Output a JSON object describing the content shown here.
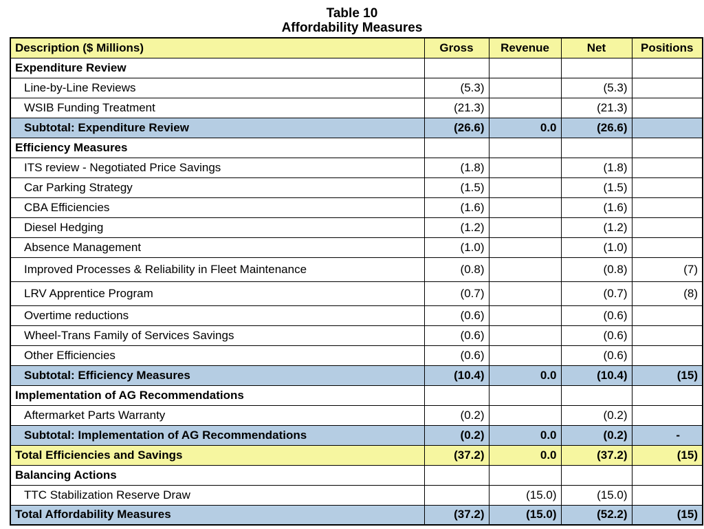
{
  "title": {
    "line1": "Table 10",
    "line2": "Affordability Measures"
  },
  "colors": {
    "yellow": "#f6f6a0",
    "blue": "#b5cde3"
  },
  "table": {
    "columns": [
      "Description ($ Millions)",
      "Gross",
      "Revenue",
      "Net",
      "Positions"
    ],
    "rows": [
      {
        "type": "section",
        "label": "Expenditure Review",
        "gross": "",
        "revenue": "",
        "net": "",
        "positions": ""
      },
      {
        "type": "item",
        "label": "Line-by-Line Reviews",
        "gross": "(5.3)",
        "revenue": "",
        "net": "(5.3)",
        "positions": ""
      },
      {
        "type": "item",
        "label": "WSIB Funding Treatment",
        "gross": "(21.3)",
        "revenue": "",
        "net": "(21.3)",
        "positions": ""
      },
      {
        "type": "subtotal",
        "label": "Subtotal: Expenditure Review",
        "gross": "(26.6)",
        "revenue": "0.0",
        "net": "(26.6)",
        "positions": ""
      },
      {
        "type": "section",
        "label": "Efficiency Measures",
        "gross": "",
        "revenue": "",
        "net": "",
        "positions": ""
      },
      {
        "type": "item",
        "label": "ITS review - Negotiated Price Savings",
        "gross": "(1.8)",
        "revenue": "",
        "net": "(1.8)",
        "positions": ""
      },
      {
        "type": "item",
        "label": "Car Parking Strategy",
        "gross": "(1.5)",
        "revenue": "",
        "net": "(1.5)",
        "positions": ""
      },
      {
        "type": "item",
        "label": "CBA Efficiencies",
        "gross": "(1.6)",
        "revenue": "",
        "net": "(1.6)",
        "positions": ""
      },
      {
        "type": "item",
        "label": "Diesel Hedging",
        "gross": "(1.2)",
        "revenue": "",
        "net": "(1.2)",
        "positions": ""
      },
      {
        "type": "item",
        "label": "Absence Management",
        "gross": "(1.0)",
        "revenue": "",
        "net": "(1.0)",
        "positions": ""
      },
      {
        "type": "item",
        "label": "Improved Processes & Reliability in Fleet Maintenance",
        "gross": "(0.8)",
        "revenue": "",
        "net": "(0.8)",
        "positions": "(7)",
        "tall": true
      },
      {
        "type": "item",
        "label": "LRV Apprentice Program",
        "gross": "(0.7)",
        "revenue": "",
        "net": "(0.7)",
        "positions": "(8)",
        "tall": true
      },
      {
        "type": "item",
        "label": "Overtime reductions",
        "gross": "(0.6)",
        "revenue": "",
        "net": "(0.6)",
        "positions": ""
      },
      {
        "type": "item",
        "label": "Wheel-Trans Family of Services Savings",
        "gross": "(0.6)",
        "revenue": "",
        "net": "(0.6)",
        "positions": ""
      },
      {
        "type": "item",
        "label": "Other Efficiencies",
        "gross": "(0.6)",
        "revenue": "",
        "net": "(0.6)",
        "positions": ""
      },
      {
        "type": "subtotal",
        "label": "Subtotal: Efficiency Measures",
        "gross": "(10.4)",
        "revenue": "0.0",
        "net": "(10.4)",
        "positions": "(15)"
      },
      {
        "type": "section",
        "label": "Implementation of AG Recommendations",
        "gross": "",
        "revenue": "",
        "net": "",
        "positions": ""
      },
      {
        "type": "item",
        "label": "Aftermarket Parts Warranty",
        "gross": "(0.2)",
        "revenue": "",
        "net": "(0.2)",
        "positions": ""
      },
      {
        "type": "subtotal",
        "label": "Subtotal: Implementation of AG Recommendations",
        "gross": "(0.2)",
        "revenue": "0.0",
        "net": "(0.2)",
        "positions": "-"
      },
      {
        "type": "total-yellow",
        "label": "Total Efficiencies and Savings",
        "gross": "(37.2)",
        "revenue": "0.0",
        "net": "(37.2)",
        "positions": "(15)"
      },
      {
        "type": "section",
        "label": "Balancing Actions",
        "gross": "",
        "revenue": "",
        "net": "",
        "positions": ""
      },
      {
        "type": "item",
        "label": "TTC Stabilization Reserve Draw",
        "gross": "",
        "revenue": "(15.0)",
        "net": "(15.0)",
        "positions": ""
      },
      {
        "type": "total-blue",
        "label": "Total Affordability Measures",
        "gross": "(37.2)",
        "revenue": "(15.0)",
        "net": "(52.2)",
        "positions": "(15)"
      }
    ]
  }
}
